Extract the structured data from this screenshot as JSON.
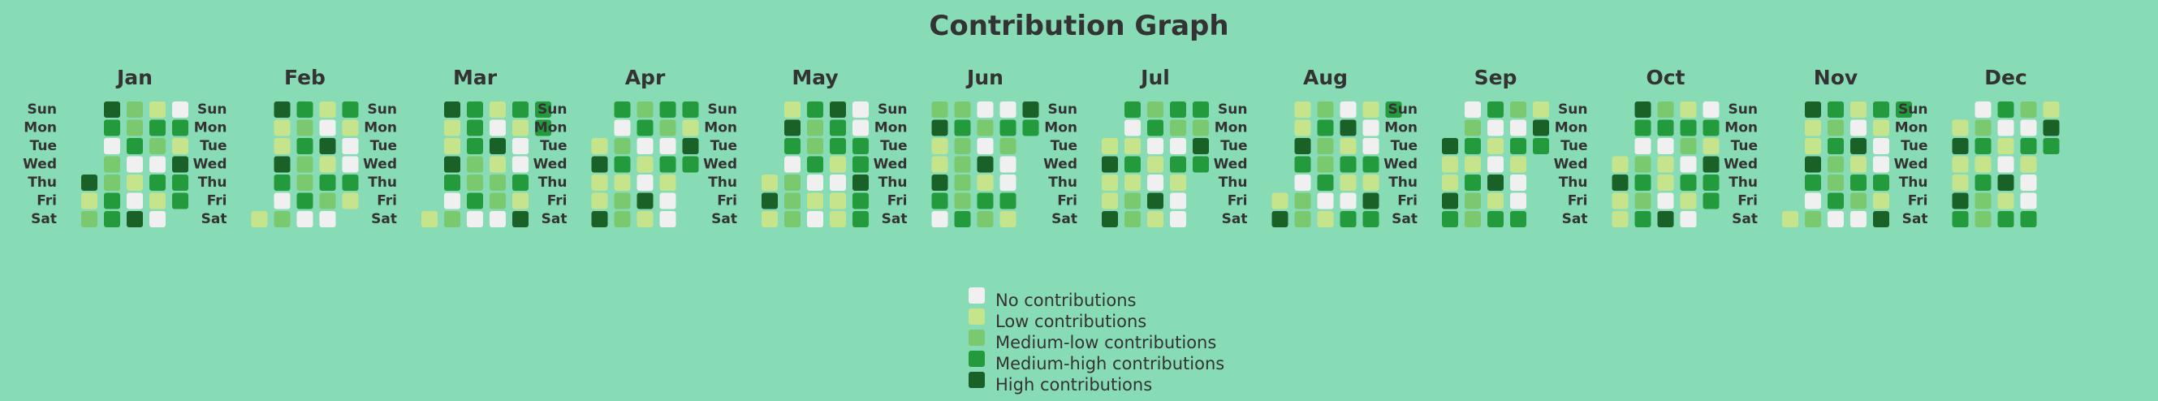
{
  "chart_data": {
    "type": "heatmap",
    "title": "Contribution Graph",
    "weekdays": [
      "Sun",
      "Mon",
      "Tue",
      "Wed",
      "Thu",
      "Fri",
      "Sat"
    ],
    "level_colors": [
      "#f0f0f0",
      "#c6e48b",
      "#7bc96f",
      "#239a3b",
      "#196127"
    ],
    "legend": [
      "No contributions",
      "Low contributions",
      "Medium-low contributions",
      "Medium-high contributions",
      "High contributions"
    ],
    "months": [
      {
        "name": "Jan",
        "weeks": [
          [
            null,
            null,
            null,
            null,
            4,
            1,
            2
          ],
          [
            4,
            3,
            0,
            2,
            2,
            3,
            3
          ],
          [
            2,
            2,
            3,
            0,
            1,
            0,
            4
          ],
          [
            1,
            3,
            2,
            0,
            3,
            1,
            0
          ],
          [
            0,
            3,
            1,
            4,
            3,
            3,
            null
          ]
        ]
      },
      {
        "name": "Feb",
        "weeks": [
          [
            null,
            null,
            null,
            null,
            null,
            null,
            1
          ],
          [
            4,
            1,
            1,
            4,
            3,
            0,
            2
          ],
          [
            3,
            2,
            3,
            2,
            2,
            3,
            0
          ],
          [
            1,
            0,
            4,
            1,
            3,
            2,
            0
          ],
          [
            3,
            1,
            0,
            0,
            3,
            1,
            null
          ]
        ]
      },
      {
        "name": "Mar",
        "weeks": [
          [
            null,
            null,
            null,
            null,
            null,
            null,
            1
          ],
          [
            4,
            1,
            1,
            4,
            3,
            0,
            2
          ],
          [
            3,
            3,
            3,
            2,
            2,
            3,
            0
          ],
          [
            1,
            0,
            4,
            1,
            2,
            2,
            0
          ],
          [
            3,
            1,
            0,
            0,
            3,
            1,
            4
          ],
          [
            3,
            3,
            null,
            null,
            null,
            null,
            null
          ]
        ]
      },
      {
        "name": "Apr",
        "weeks": [
          [
            null,
            null,
            1,
            4,
            1,
            1,
            4
          ],
          [
            3,
            0,
            2,
            3,
            1,
            2,
            2
          ],
          [
            2,
            3,
            0,
            1,
            0,
            4,
            1
          ],
          [
            3,
            2,
            0,
            3,
            1,
            0,
            0
          ],
          [
            3,
            1,
            4,
            3,
            null,
            null,
            null
          ]
        ]
      },
      {
        "name": "May",
        "weeks": [
          [
            null,
            null,
            null,
            null,
            1,
            4,
            1
          ],
          [
            1,
            4,
            3,
            0,
            2,
            2,
            2
          ],
          [
            3,
            2,
            2,
            3,
            0,
            1,
            0
          ],
          [
            4,
            3,
            3,
            1,
            0,
            1,
            1
          ],
          [
            0,
            0,
            3,
            3,
            4,
            3,
            3
          ]
        ]
      },
      {
        "name": "Jun",
        "weeks": [
          [
            2,
            4,
            1,
            1,
            4,
            3,
            0
          ],
          [
            2,
            3,
            2,
            2,
            2,
            2,
            3
          ],
          [
            0,
            2,
            0,
            4,
            1,
            3,
            2
          ],
          [
            0,
            3,
            2,
            0,
            0,
            3,
            1
          ],
          [
            4,
            3,
            null,
            null,
            null,
            null,
            null
          ]
        ]
      },
      {
        "name": "Jul",
        "weeks": [
          [
            null,
            null,
            1,
            4,
            1,
            1,
            4
          ],
          [
            3,
            0,
            1,
            3,
            1,
            2,
            2
          ],
          [
            2,
            3,
            0,
            1,
            0,
            4,
            1
          ],
          [
            3,
            2,
            0,
            3,
            1,
            0,
            0
          ],
          [
            3,
            2,
            4,
            3,
            null,
            null,
            null
          ]
        ]
      },
      {
        "name": "Aug",
        "weeks": [
          [
            null,
            null,
            null,
            null,
            null,
            1,
            4
          ],
          [
            1,
            1,
            4,
            3,
            0,
            2,
            2
          ],
          [
            2,
            3,
            2,
            2,
            3,
            0,
            1
          ],
          [
            0,
            4,
            1,
            3,
            1,
            0,
            3
          ],
          [
            1,
            0,
            0,
            3,
            1,
            4,
            3
          ],
          [
            3,
            null,
            null,
            null,
            null,
            null,
            null
          ]
        ]
      },
      {
        "name": "Sep",
        "weeks": [
          [
            null,
            null,
            4,
            1,
            1,
            4,
            3
          ],
          [
            0,
            2,
            3,
            1,
            3,
            2,
            2
          ],
          [
            3,
            0,
            1,
            0,
            4,
            1,
            3
          ],
          [
            2,
            0,
            3,
            1,
            0,
            0,
            3
          ],
          [
            1,
            4,
            3,
            null,
            null,
            null,
            null
          ]
        ]
      },
      {
        "name": "Oct",
        "weeks": [
          [
            null,
            null,
            null,
            1,
            4,
            1,
            1
          ],
          [
            4,
            3,
            0,
            2,
            3,
            2,
            3
          ],
          [
            2,
            3,
            0,
            1,
            1,
            0,
            4
          ],
          [
            1,
            3,
            2,
            0,
            3,
            1,
            0
          ],
          [
            0,
            3,
            1,
            4,
            3,
            3,
            null
          ]
        ]
      },
      {
        "name": "Nov",
        "weeks": [
          [
            null,
            null,
            null,
            null,
            null,
            null,
            1
          ],
          [
            4,
            1,
            1,
            4,
            3,
            0,
            2
          ],
          [
            3,
            2,
            3,
            2,
            2,
            3,
            0
          ],
          [
            1,
            0,
            4,
            1,
            3,
            2,
            0
          ],
          [
            3,
            1,
            0,
            0,
            3,
            1,
            4
          ],
          [
            3,
            null,
            null,
            null,
            null,
            null,
            null
          ]
        ]
      },
      {
        "name": "Dec",
        "weeks": [
          [
            null,
            1,
            4,
            1,
            1,
            4,
            3
          ],
          [
            0,
            2,
            3,
            1,
            3,
            2,
            2
          ],
          [
            3,
            0,
            1,
            0,
            4,
            1,
            3
          ],
          [
            2,
            0,
            3,
            1,
            0,
            0,
            3
          ],
          [
            1,
            4,
            3,
            null,
            null,
            null,
            null
          ]
        ]
      }
    ]
  }
}
